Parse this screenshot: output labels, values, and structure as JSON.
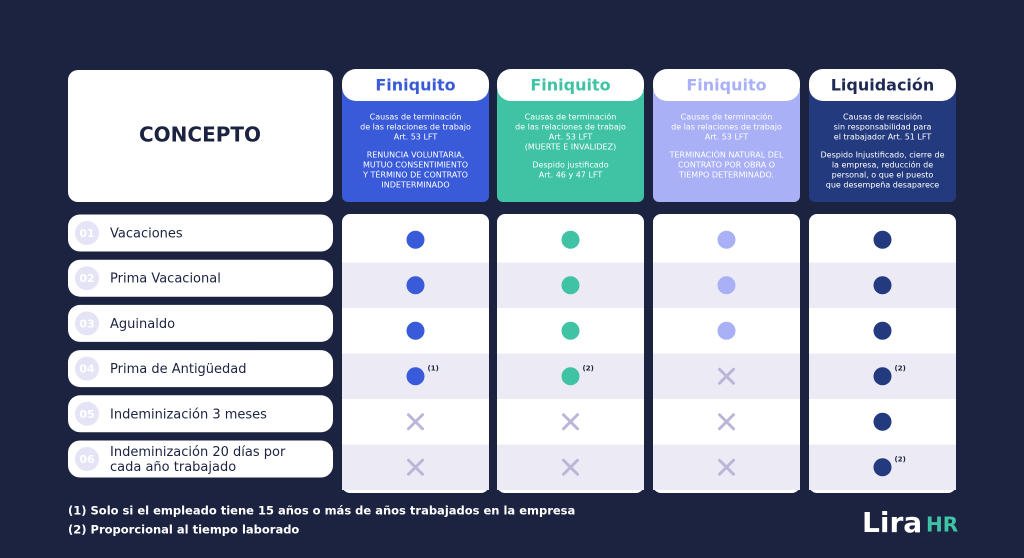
{
  "concept": "CONCEPTO",
  "columns": [
    {
      "title": "Finiquito",
      "color": "#3a5bd9",
      "title_color": "#3a5bd9",
      "text_color": "#ffffff",
      "intro": [
        "Causas de terminación",
        "de las relaciones de trabajo",
        "Art. 53 LFT"
      ],
      "detail": [
        "RENUNCIA VOLUNTARIA,",
        "MUTUO CONSENTIMIENTO",
        "Y TÉRMINO DE CONTRATO",
        "INDETERMINADO"
      ],
      "cells": [
        {
          "included": true
        },
        {
          "included": true
        },
        {
          "included": true
        },
        {
          "included": true,
          "note": "(1)"
        },
        {
          "included": false
        },
        {
          "included": false
        }
      ]
    },
    {
      "title": "Finiquito",
      "color": "#3fc3a4",
      "title_color": "#3fc3a4",
      "text_color": "#ffffff",
      "intro": [
        "Causas de terminación",
        "de las relaciones de trabajo",
        "Art. 53 LFT",
        "(MUERTE E INVALIDEZ)"
      ],
      "detail": [
        "Despido justificado",
        "Art. 46 y 47 LFT"
      ],
      "cells": [
        {
          "included": true
        },
        {
          "included": true
        },
        {
          "included": true
        },
        {
          "included": true,
          "note": "(2)"
        },
        {
          "included": false
        },
        {
          "included": false
        }
      ]
    },
    {
      "title": "Finiquito",
      "color": "#a9b0f6",
      "title_color": "#a9b0f6",
      "text_color": "#ffffff",
      "intro": [
        "Causas de terminación",
        "de las relaciones de trabajo",
        "Art. 53 LFT"
      ],
      "detail": [
        "TERMINACIÓN NATURAL DEL",
        "CONTRATO POR OBRA O",
        "TIEMPO DETERMINADO."
      ],
      "cells": [
        {
          "included": true
        },
        {
          "included": true
        },
        {
          "included": true
        },
        {
          "included": false
        },
        {
          "included": false
        },
        {
          "included": false
        }
      ]
    },
    {
      "title": "Liquidación",
      "color": "#243a7f",
      "title_color": "#1e2a55",
      "text_color": "#ffffff",
      "intro": [
        "Causas de rescisión",
        "sin responsabilidad para",
        "el trabajador Art. 51 LFT"
      ],
      "detail": [
        "Despido Injustificado, cierre de",
        "la empresa, reducción de",
        "personal, o que el puesto",
        "que desempeña desaparece"
      ],
      "cells": [
        {
          "included": true
        },
        {
          "included": true
        },
        {
          "included": true
        },
        {
          "included": true,
          "note": "(2)"
        },
        {
          "included": true
        },
        {
          "included": true,
          "note": "(2)"
        }
      ]
    }
  ],
  "rows": [
    {
      "number": "01",
      "label": [
        "Vacaciones"
      ]
    },
    {
      "number": "02",
      "label": [
        "Prima Vacacional"
      ]
    },
    {
      "number": "03",
      "label": [
        "Aguinaldo"
      ]
    },
    {
      "number": "04",
      "label": [
        "Prima de Antigüedad"
      ]
    },
    {
      "number": "05",
      "label": [
        "Indeminización 3 meses"
      ]
    },
    {
      "number": "06",
      "label": [
        "Indeminización 20 días por",
        "cada año trabajado"
      ]
    }
  ],
  "footnotes": [
    "(1) Solo si el empleado tiene 15 años o más de años trabajados en la empresa",
    "(2) Proporcional al tiempo laborado"
  ],
  "logo": {
    "name": "Lira",
    "suffix": "HR"
  }
}
